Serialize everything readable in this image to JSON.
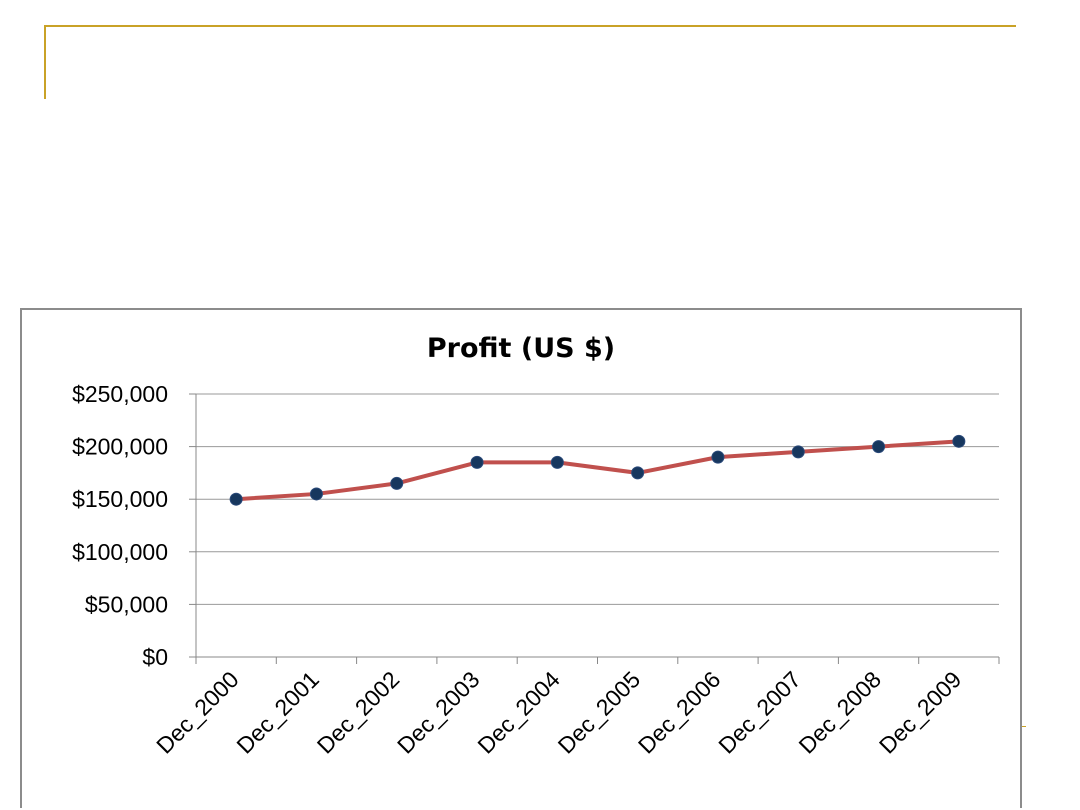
{
  "chart_data": {
    "type": "line",
    "title": "Profit (US $)",
    "xlabel": "",
    "ylabel": "",
    "categories": [
      "Dec_2000",
      "Dec_2001",
      "Dec_2002",
      "Dec_2003",
      "Dec_2004",
      "Dec_2005",
      "Dec_2006",
      "Dec_2007",
      "Dec_2008",
      "Dec_2009"
    ],
    "series": [
      {
        "values": [
          150000,
          155000,
          165000,
          185000,
          185000,
          175000,
          190000,
          195000,
          200000,
          205000
        ]
      }
    ],
    "ylim": [
      0,
      250000
    ],
    "yticks": [
      0,
      50000,
      100000,
      150000,
      200000,
      250000
    ],
    "ytick_labels": [
      "$0",
      "$50,000",
      "$100,000",
      "$150,000",
      "$200,000",
      "$250,000"
    ],
    "grid": true,
    "legend": "none",
    "colors": {
      "line": "#c0504d",
      "marker": "#17375e",
      "grid": "#999999",
      "frame": "#c9a227"
    }
  }
}
